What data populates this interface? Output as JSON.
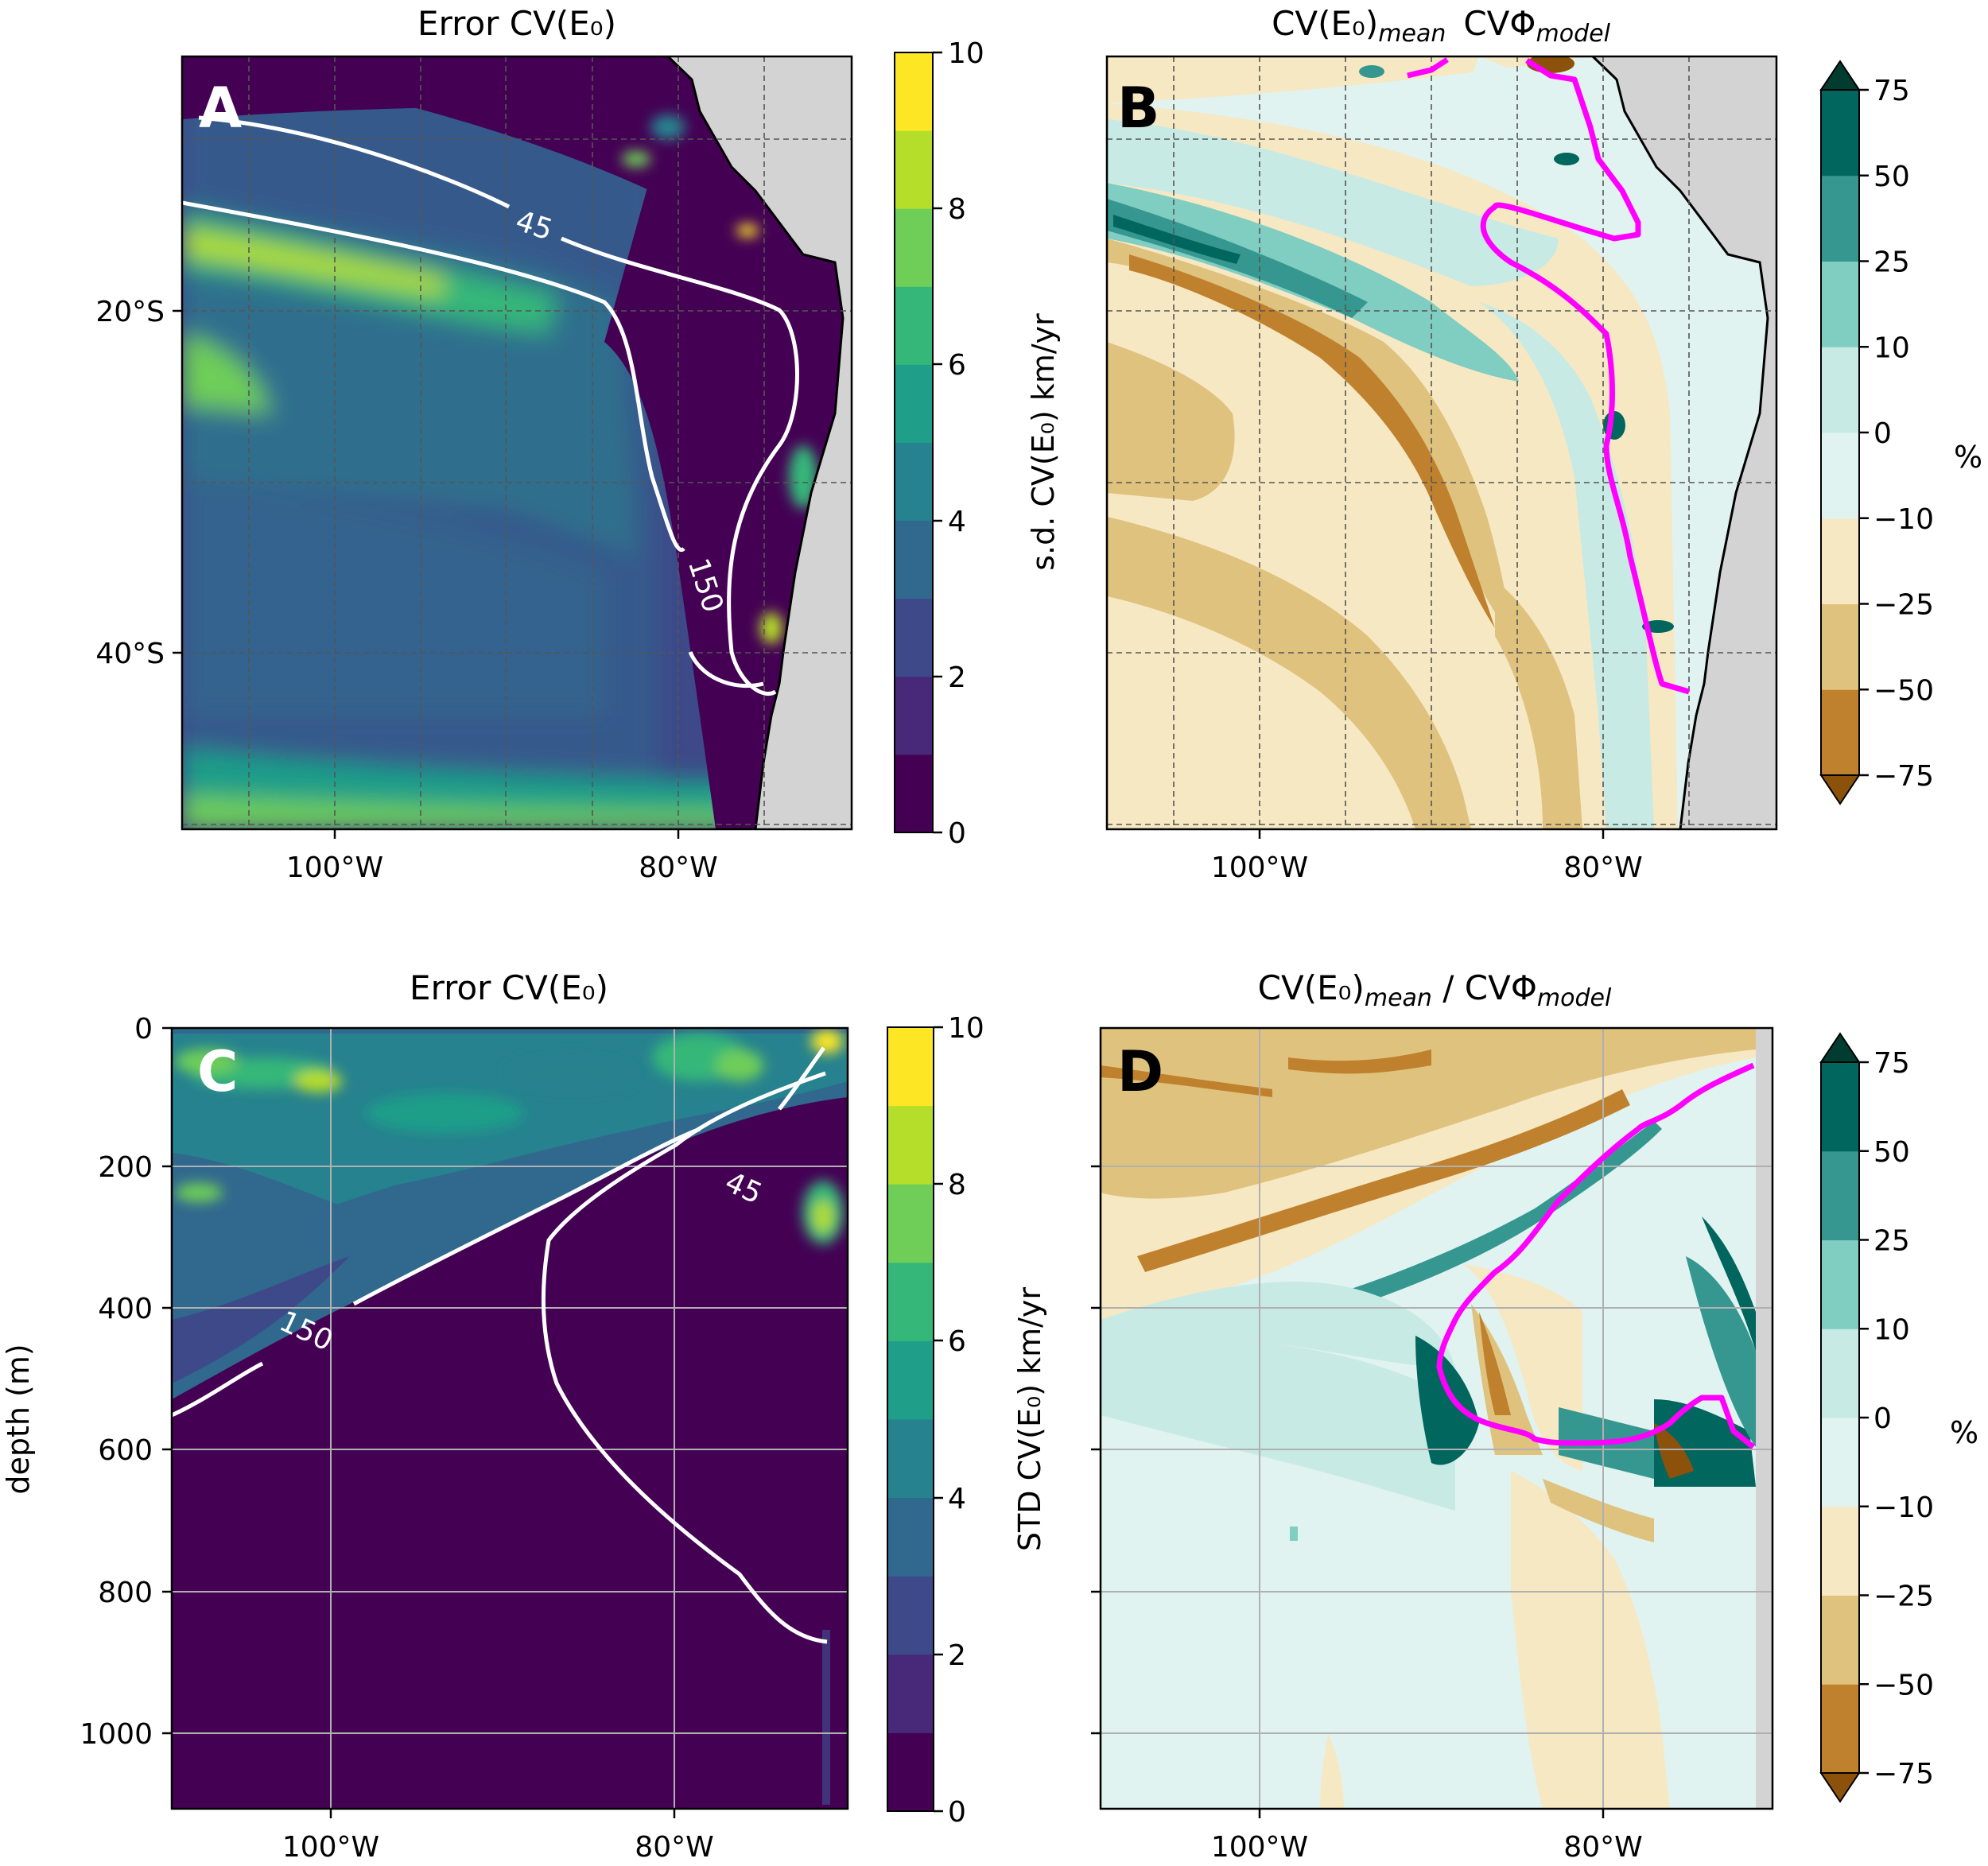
{
  "figure": {
    "panels": [
      {
        "id": "A",
        "letter": "A",
        "title": "Error CV(E₀)",
        "x_ticks": [
          "100°W",
          "80°W"
        ],
        "y_ticks": [
          "20°S",
          "40°S"
        ],
        "colorbar": {
          "label": "s.d. CV(E₀) km/yr",
          "ticks": [
            "0",
            "2",
            "4",
            "6",
            "8",
            "10"
          ]
        },
        "contour_labels": [
          "45",
          "150"
        ]
      },
      {
        "id": "B",
        "letter": "B",
        "title_main": "CV(E₀)",
        "title_sub1": "mean",
        "title_mid": "CVΦ",
        "title_sub2": "model",
        "x_ticks": [
          "100°W",
          "80°W"
        ],
        "colorbar": {
          "label": "%",
          "ticks": [
            "75",
            "50",
            "25",
            "10",
            "0",
            "−10",
            "−25",
            "−50",
            "−75"
          ]
        }
      },
      {
        "id": "C",
        "letter": "C",
        "title": "Error CV(E₀)",
        "x_ticks": [
          "100°W",
          "80°W"
        ],
        "y_label": "depth (m)",
        "y_ticks": [
          "0",
          "200",
          "400",
          "600",
          "800",
          "1000"
        ],
        "colorbar": {
          "label": "STD CV(E₀) km/yr",
          "ticks": [
            "0",
            "2",
            "4",
            "6",
            "8",
            "10"
          ]
        },
        "contour_labels": [
          "45",
          "150"
        ]
      },
      {
        "id": "D",
        "letter": "D",
        "title_main": "CV(E₀)",
        "title_sub1": "mean",
        "title_mid": " / CVΦ",
        "title_sub2": "model",
        "x_ticks": [
          "100°W",
          "80°W"
        ],
        "colorbar": {
          "label": "%",
          "ticks": [
            "75",
            "50",
            "25",
            "10",
            "0",
            "−10",
            "−25",
            "−50",
            "−75"
          ]
        }
      }
    ],
    "colors": {
      "viridis": [
        "#440154",
        "#482878",
        "#3e4989",
        "#31688e",
        "#26828e",
        "#1f9e89",
        "#35b779",
        "#6ece58",
        "#b5de2b",
        "#fde725"
      ],
      "brbg": [
        "#8c510a",
        "#bf812d",
        "#dfc27d",
        "#f6e8c3",
        "#e0f3f0",
        "#c7eae5",
        "#80cdc1",
        "#35978f",
        "#01665e",
        "#003c30"
      ],
      "land": "#d3d3d3",
      "highlight": "#ff00ff"
    }
  },
  "chart_data": [
    {
      "type": "heatmap",
      "panel": "A",
      "title": "Error CV(E₀)",
      "x_ticks": [
        "100°W",
        "80°W"
      ],
      "y_ticks": [
        "20°S",
        "40°S"
      ],
      "colorbar_label": "s.d. CV(E₀) km/yr",
      "colorbar_range": [
        0,
        10
      ],
      "contours": [
        45,
        150
      ],
      "grid": true
    },
    {
      "type": "heatmap",
      "panel": "B",
      "title": "CV(E₀)mean CVΦmodel",
      "x_ticks": [
        "100°W",
        "80°W"
      ],
      "colorbar_label": "%",
      "colorbar_levels": [
        -75,
        -50,
        -25,
        -10,
        0,
        10,
        25,
        50,
        75
      ],
      "grid": true
    },
    {
      "type": "heatmap",
      "panel": "C",
      "title": "Error CV(E₀)",
      "x_ticks": [
        "100°W",
        "80°W"
      ],
      "ylabel": "depth (m)",
      "y_ticks": [
        0,
        200,
        400,
        600,
        800,
        1000
      ],
      "colorbar_label": "STD CV(E₀) km/yr",
      "colorbar_range": [
        0,
        10
      ],
      "contours": [
        45,
        150
      ],
      "grid": true
    },
    {
      "type": "heatmap",
      "panel": "D",
      "title": "CV(E₀)mean / CVΦmodel",
      "x_ticks": [
        "100°W",
        "80°W"
      ],
      "colorbar_label": "%",
      "colorbar_levels": [
        -75,
        -50,
        -25,
        -10,
        0,
        10,
        25,
        50,
        75
      ],
      "grid": true
    }
  ]
}
